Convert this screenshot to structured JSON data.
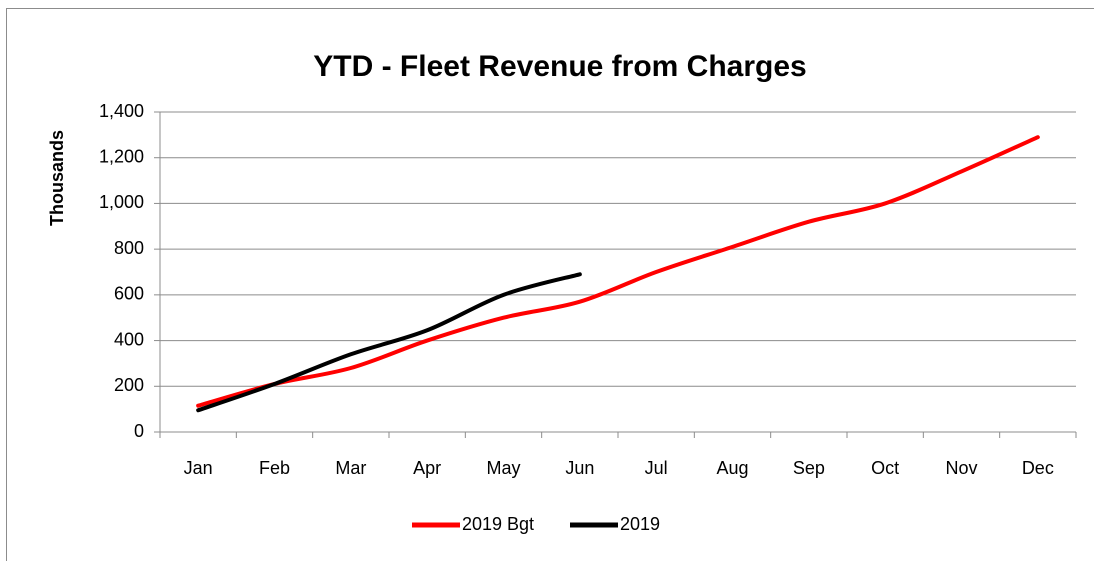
{
  "chart_data": {
    "type": "line",
    "title": "YTD - Fleet Revenue from Charges",
    "y_label": "Thousands",
    "categories": [
      "Jan",
      "Feb",
      "Mar",
      "Apr",
      "May",
      "Jun",
      "Jul",
      "Aug",
      "Sep",
      "Oct",
      "Nov",
      "Dec"
    ],
    "series": [
      {
        "name": "2019 Bgt",
        "color": "#ff0000",
        "values": [
          115,
          210,
          280,
          400,
          500,
          570,
          700,
          810,
          920,
          1000,
          1140,
          1290
        ]
      },
      {
        "name": "2019",
        "color": "#000000",
        "values": [
          95,
          210,
          340,
          445,
          600,
          690,
          null,
          null,
          null,
          null,
          null,
          null
        ]
      }
    ],
    "ylim": [
      0,
      1400
    ],
    "yticks": [
      0,
      200,
      400,
      600,
      800,
      {
        "value": 1000,
        "label": "1,000"
      },
      {
        "value": 1200,
        "label": "1,200"
      },
      {
        "value": 1400,
        "label": "1,400"
      }
    ],
    "grid": true,
    "legend": "bottom",
    "smooth": true
  }
}
